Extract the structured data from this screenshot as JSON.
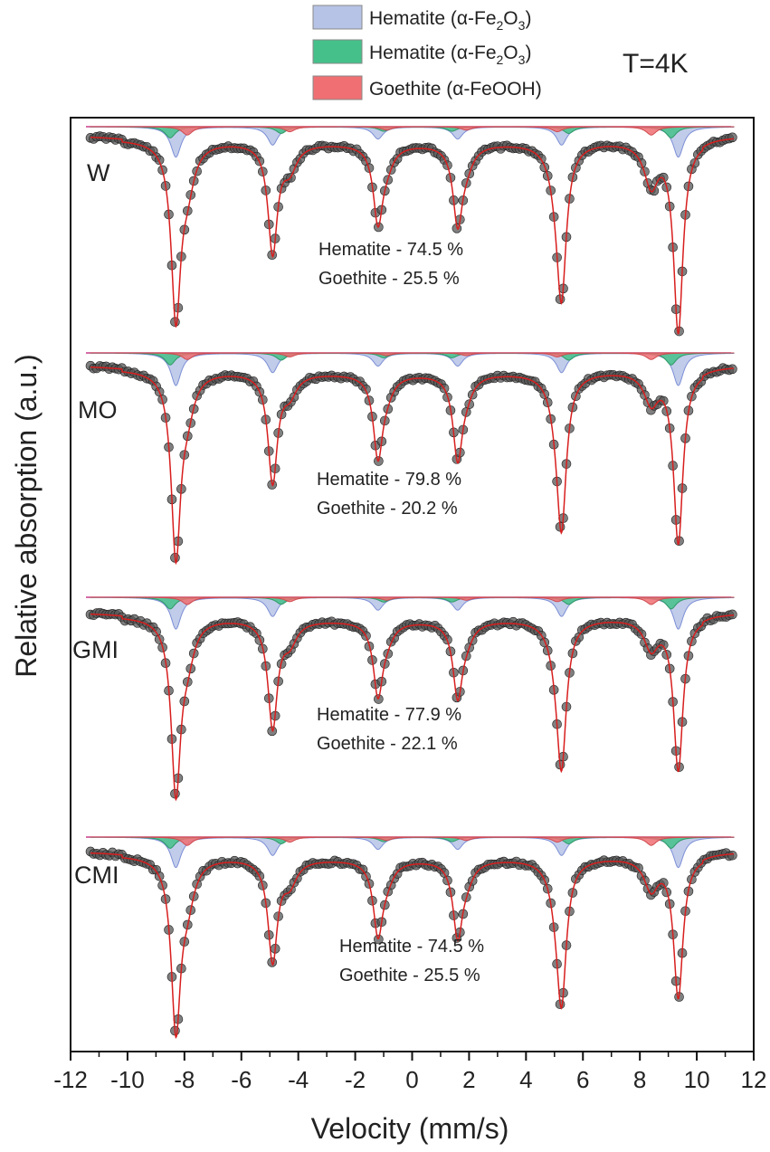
{
  "chart_data": {
    "type": "line",
    "subtype": "mossbauer-spectra-stacked",
    "temperature_label": "T=4K",
    "xlabel": "Velocity (mm/s)",
    "ylabel": "Relative absorption (a.u.)",
    "xlim": [
      -12,
      12
    ],
    "xticks": [
      -12,
      -10,
      -8,
      -6,
      -4,
      -2,
      0,
      2,
      4,
      6,
      8,
      10,
      12
    ],
    "xtick_labels": [
      "-12",
      "-10",
      "-8",
      "-6",
      "-4",
      "-2",
      "0",
      "2",
      "4",
      "6",
      "8",
      "10",
      "12"
    ],
    "legend": [
      {
        "name": "Hematite",
        "formula": "α-Fe2O3",
        "label_pre": "Hematite (α-Fe",
        "sub1": "2",
        "mid": "O",
        "sub2": "3",
        "label_post": ")",
        "color": "#b6c3e6"
      },
      {
        "name": "Hematite",
        "formula": "α-Fe2O3",
        "label_pre": "Hematite (α-Fe",
        "sub1": "2",
        "mid": "O",
        "sub2": "3",
        "label_post": ")",
        "color": "#45c08a"
      },
      {
        "name": "Goethite",
        "formula": "α-FeOOH",
        "label_pre": "Goethite (α-FeOOH)",
        "sub1": "",
        "mid": "",
        "sub2": "",
        "label_post": "",
        "color": "#ef6f72"
      }
    ],
    "components": {
      "hematite_1_lines_mm_s": [
        -8.3,
        -4.9,
        -1.2,
        1.6,
        5.25,
        9.35
      ],
      "hematite_2_lines_mm_s": [
        -8.5,
        -4.6,
        -1.0,
        1.4,
        5.5,
        9.1
      ],
      "goethite_lines_mm_s": [
        -7.9,
        -4.3,
        -0.9,
        1.9,
        5.1,
        8.4
      ]
    },
    "spectra": [
      {
        "sample": "W",
        "hematite_text": "Hematite - 74.5 %",
        "goethite_text": "Goethite - 25.5 %",
        "hematite_pct": 74.5,
        "goethite_pct": 25.5
      },
      {
        "sample": "MO",
        "hematite_text": "Hematite  - 79.8 %",
        "goethite_text": "Goethite  - 20.2 %",
        "hematite_pct": 79.8,
        "goethite_pct": 20.2
      },
      {
        "sample": "GMI",
        "hematite_text": "Hematite  - 77.9 %",
        "goethite_text": "Goethite  - 22.1 %",
        "hematite_pct": 77.9,
        "goethite_pct": 22.1
      },
      {
        "sample": "CMI",
        "hematite_text": "Hematite  - 74.5 %",
        "goethite_text": "Goethite  - 25.5 %",
        "hematite_pct": 74.5,
        "goethite_pct": 25.5
      }
    ]
  }
}
